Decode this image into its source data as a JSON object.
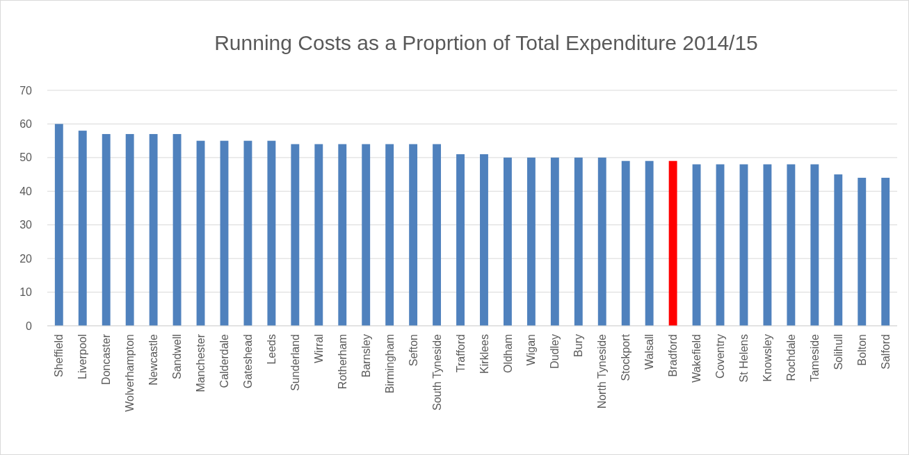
{
  "chart_data": {
    "type": "bar",
    "title": "Running Costs as a Proprtion of Total Expenditure 2014/15",
    "categories": [
      "Sheffield",
      "Liverpool",
      "Doncaster",
      "Wolverhampton",
      "Newcastle",
      "Sandwell",
      "Manchester",
      "Calderdale",
      "Gateshead",
      "Leeds",
      "Sunderland",
      "Wirral",
      "Rotherham",
      "Barnsley",
      "Birmingham",
      "Sefton",
      "South Tyneside",
      "Trafford",
      "Kirklees",
      "Oldham",
      "Wigan",
      "Dudley",
      "Bury",
      "North Tyneside",
      "Stockport",
      "Walsall",
      "Bradford",
      "Wakefield",
      "Coventry",
      "St Helens",
      "Knowsley",
      "Rochdale",
      "Tameside",
      "Solihull",
      "Bolton",
      "Salford"
    ],
    "values": [
      60,
      58,
      57,
      57,
      57,
      57,
      55,
      55,
      55,
      55,
      54,
      54,
      54,
      54,
      54,
      54,
      54,
      51,
      51,
      50,
      50,
      50,
      50,
      50,
      49,
      49,
      49,
      48,
      48,
      48,
      48,
      48,
      48,
      45,
      44,
      44
    ],
    "colors": [
      "#4f81bd",
      "#4f81bd",
      "#4f81bd",
      "#4f81bd",
      "#4f81bd",
      "#4f81bd",
      "#4f81bd",
      "#4f81bd",
      "#4f81bd",
      "#4f81bd",
      "#4f81bd",
      "#4f81bd",
      "#4f81bd",
      "#4f81bd",
      "#4f81bd",
      "#4f81bd",
      "#4f81bd",
      "#4f81bd",
      "#4f81bd",
      "#4f81bd",
      "#4f81bd",
      "#4f81bd",
      "#4f81bd",
      "#4f81bd",
      "#4f81bd",
      "#4f81bd",
      "#ff0000",
      "#4f81bd",
      "#4f81bd",
      "#4f81bd",
      "#4f81bd",
      "#4f81bd",
      "#4f81bd",
      "#4f81bd",
      "#4f81bd",
      "#4f81bd"
    ],
    "ylim": [
      0,
      70
    ],
    "yticks": [
      0,
      10,
      20,
      30,
      40,
      50,
      60,
      70
    ],
    "grid": "y"
  }
}
